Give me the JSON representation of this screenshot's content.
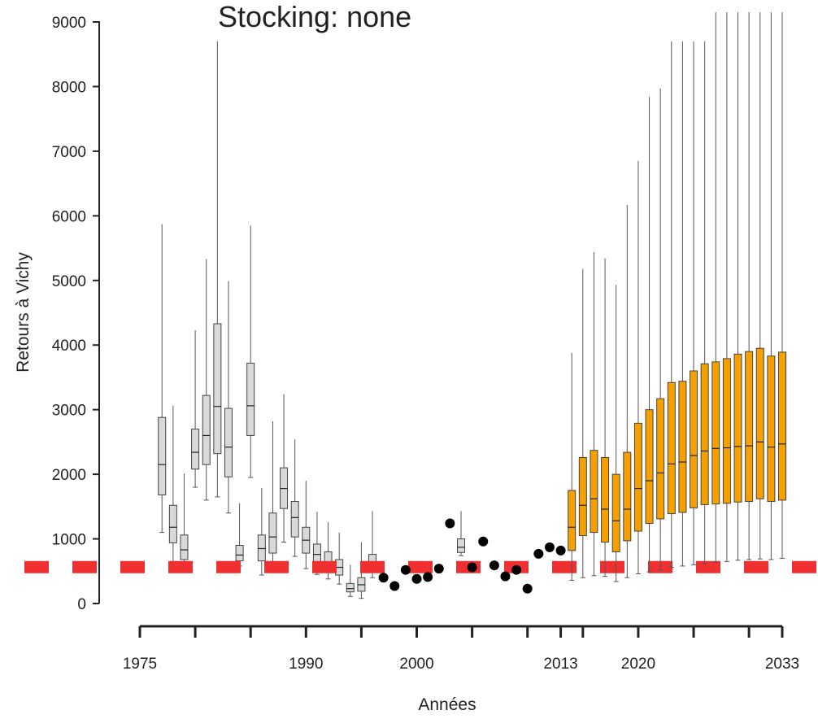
{
  "chart_data": {
    "type": "box",
    "title": "Stocking: none",
    "xlabel": "Années",
    "ylabel": "Retours à Vichy",
    "ylim": [
      0,
      9000
    ],
    "xlim": [
      1975,
      2033
    ],
    "y_ticks": [
      0,
      1000,
      2000,
      3000,
      4000,
      5000,
      6000,
      7000,
      8000,
      9000
    ],
    "y_tick_labels": [
      "0",
      "1000",
      "2000",
      "3000",
      "4000",
      "5000",
      "6000",
      "7000",
      "8000",
      "9000"
    ],
    "x_ticks": [
      1975,
      1980,
      1985,
      1990,
      1995,
      2000,
      2005,
      2010,
      2013,
      2015,
      2020,
      2025,
      2030,
      2033
    ],
    "x_tick_labels": [
      {
        "year": 1975,
        "label": "1975"
      },
      {
        "year": 1990,
        "label": "1990"
      },
      {
        "year": 2000,
        "label": "2000"
      },
      {
        "year": 2013,
        "label": "2013"
      },
      {
        "year": 2020,
        "label": "2020"
      },
      {
        "year": 2033,
        "label": "2033"
      }
    ],
    "threshold": {
      "y": 550,
      "color": "#f03030",
      "style": "dashed"
    },
    "historical_boxes": {
      "color": "#d9d9d9",
      "boxes": [
        {
          "x": 1977,
          "whisker_low": 1100,
          "q1": 1680,
          "median": 2150,
          "q3": 2880,
          "whisker_high": 5870
        },
        {
          "x": 1978,
          "whisker_low": 620,
          "q1": 940,
          "median": 1180,
          "q3": 1520,
          "whisker_high": 3060
        },
        {
          "x": 1979,
          "whisker_low": 580,
          "q1": 680,
          "median": 830,
          "q3": 1060,
          "whisker_high": 2010
        },
        {
          "x": 1980,
          "whisker_low": 1800,
          "q1": 2080,
          "median": 2340,
          "q3": 2700,
          "whisker_high": 4230
        },
        {
          "x": 1981,
          "whisker_low": 1600,
          "q1": 2150,
          "median": 2600,
          "q3": 3220,
          "whisker_high": 5330
        },
        {
          "x": 1982,
          "whisker_low": 1650,
          "q1": 2320,
          "median": 3050,
          "q3": 4330,
          "whisker_high": 8700
        },
        {
          "x": 1983,
          "whisker_low": 1400,
          "q1": 1960,
          "median": 2420,
          "q3": 3020,
          "whisker_high": 4990
        },
        {
          "x": 1984,
          "whisker_low": 580,
          "q1": 660,
          "median": 750,
          "q3": 900,
          "whisker_high": 1550
        },
        {
          "x": 1985,
          "whisker_low": 1950,
          "q1": 2600,
          "median": 3060,
          "q3": 3720,
          "whisker_high": 5850
        },
        {
          "x": 1986,
          "whisker_low": 440,
          "q1": 660,
          "median": 850,
          "q3": 1060,
          "whisker_high": 1790
        },
        {
          "x": 1987,
          "whisker_low": 520,
          "q1": 780,
          "median": 1030,
          "q3": 1400,
          "whisker_high": 2820
        },
        {
          "x": 1988,
          "whisker_low": 950,
          "q1": 1470,
          "median": 1780,
          "q3": 2100,
          "whisker_high": 3240
        },
        {
          "x": 1989,
          "whisker_low": 730,
          "q1": 1030,
          "median": 1330,
          "q3": 1580,
          "whisker_high": 2540
        },
        {
          "x": 1990,
          "whisker_low": 540,
          "q1": 780,
          "median": 980,
          "q3": 1180,
          "whisker_high": 1900
        },
        {
          "x": 1991,
          "whisker_low": 450,
          "q1": 620,
          "median": 760,
          "q3": 920,
          "whisker_high": 1420
        },
        {
          "x": 1992,
          "whisker_low": 380,
          "q1": 520,
          "median": 630,
          "q3": 800,
          "whisker_high": 1260
        },
        {
          "x": 1993,
          "whisker_low": 300,
          "q1": 440,
          "median": 560,
          "q3": 680,
          "whisker_high": 1100
        },
        {
          "x": 1994,
          "whisker_low": 110,
          "q1": 180,
          "median": 230,
          "q3": 310,
          "whisker_high": 600
        },
        {
          "x": 1995,
          "whisker_low": 80,
          "q1": 190,
          "median": 290,
          "q3": 400,
          "whisker_high": 950
        },
        {
          "x": 1996,
          "whisker_low": 400,
          "q1": 520,
          "median": 620,
          "q3": 760,
          "whisker_high": 1430
        },
        {
          "x": 2004,
          "whisker_low": 740,
          "q1": 790,
          "median": 870,
          "q3": 1000,
          "whisker_high": 1430
        }
      ]
    },
    "observed_points": {
      "color": "#000000",
      "points": [
        {
          "x": 1997,
          "y": 400
        },
        {
          "x": 1998,
          "y": 270
        },
        {
          "x": 1999,
          "y": 520
        },
        {
          "x": 2000,
          "y": 380
        },
        {
          "x": 2001,
          "y": 410
        },
        {
          "x": 2002,
          "y": 540
        },
        {
          "x": 2003,
          "y": 1240
        },
        {
          "x": 2005,
          "y": 560
        },
        {
          "x": 2006,
          "y": 960
        },
        {
          "x": 2007,
          "y": 590
        },
        {
          "x": 2008,
          "y": 420
        },
        {
          "x": 2009,
          "y": 520
        },
        {
          "x": 2010,
          "y": 230
        },
        {
          "x": 2011,
          "y": 770
        },
        {
          "x": 2012,
          "y": 870
        },
        {
          "x": 2013,
          "y": 820
        }
      ]
    },
    "projection_boxes": {
      "color": "#f5a000",
      "boxes": [
        {
          "x": 2014,
          "whisker_low": 360,
          "q1": 820,
          "median": 1180,
          "q3": 1750,
          "whisker_high": 3880
        },
        {
          "x": 2015,
          "whisker_low": 400,
          "q1": 1050,
          "median": 1520,
          "q3": 2260,
          "whisker_high": 5180
        },
        {
          "x": 2016,
          "whisker_low": 430,
          "q1": 1100,
          "median": 1620,
          "q3": 2370,
          "whisker_high": 5440
        },
        {
          "x": 2017,
          "whisker_low": 420,
          "q1": 950,
          "median": 1460,
          "q3": 2260,
          "whisker_high": 5340
        },
        {
          "x": 2018,
          "whisker_low": 340,
          "q1": 800,
          "median": 1280,
          "q3": 2000,
          "whisker_high": 4930
        },
        {
          "x": 2019,
          "whisker_low": 400,
          "q1": 970,
          "median": 1460,
          "q3": 2340,
          "whisker_high": 6170
        },
        {
          "x": 2020,
          "whisker_low": 460,
          "q1": 1120,
          "median": 1780,
          "q3": 2790,
          "whisker_high": 6850
        },
        {
          "x": 2021,
          "whisker_low": 490,
          "q1": 1240,
          "median": 1900,
          "q3": 3000,
          "whisker_high": 7840
        },
        {
          "x": 2022,
          "whisker_low": 520,
          "q1": 1310,
          "median": 2020,
          "q3": 3170,
          "whisker_high": 7970
        },
        {
          "x": 2023,
          "whisker_low": 560,
          "q1": 1390,
          "median": 2160,
          "q3": 3420,
          "whisker_high": 8700
        },
        {
          "x": 2024,
          "whisker_low": 580,
          "q1": 1410,
          "median": 2190,
          "q3": 3440,
          "whisker_high": 8700
        },
        {
          "x": 2025,
          "whisker_low": 600,
          "q1": 1480,
          "median": 2290,
          "q3": 3600,
          "whisker_high": 8700
        },
        {
          "x": 2026,
          "whisker_low": 620,
          "q1": 1530,
          "median": 2360,
          "q3": 3710,
          "whisker_high": 8700
        },
        {
          "x": 2027,
          "whisker_low": 640,
          "q1": 1540,
          "median": 2400,
          "q3": 3740,
          "whisker_high": 9150
        },
        {
          "x": 2028,
          "whisker_low": 650,
          "q1": 1550,
          "median": 2410,
          "q3": 3790,
          "whisker_high": 9150
        },
        {
          "x": 2029,
          "whisker_low": 670,
          "q1": 1570,
          "median": 2430,
          "q3": 3860,
          "whisker_high": 9150
        },
        {
          "x": 2030,
          "whisker_low": 680,
          "q1": 1580,
          "median": 2440,
          "q3": 3900,
          "whisker_high": 9150
        },
        {
          "x": 2031,
          "whisker_low": 690,
          "q1": 1620,
          "median": 2500,
          "q3": 3950,
          "whisker_high": 9150
        },
        {
          "x": 2032,
          "whisker_low": 680,
          "q1": 1580,
          "median": 2420,
          "q3": 3830,
          "whisker_high": 9150
        },
        {
          "x": 2033,
          "whisker_low": 700,
          "q1": 1600,
          "median": 2470,
          "q3": 3890,
          "whisker_high": 9150
        }
      ]
    }
  }
}
